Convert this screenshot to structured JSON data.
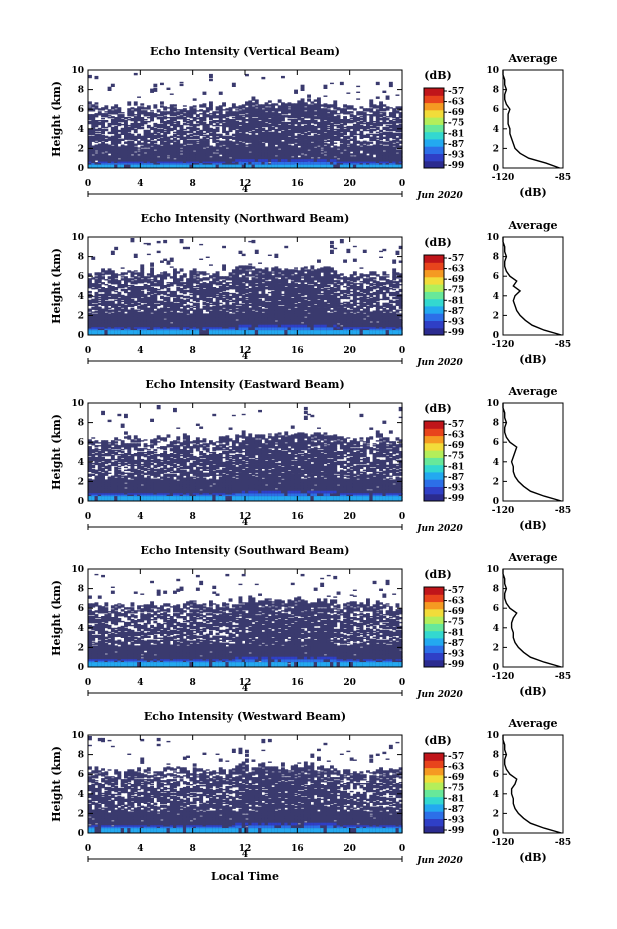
{
  "figure": {
    "x_title": "Local Time",
    "date_label": "Jun 2020",
    "colorbar_unit": "(dB)",
    "avg_title": "Average",
    "avg_xlabel": "(dB)",
    "ylabel": "Height (km)",
    "sub_tick_label": "4",
    "colors": {
      "echo": "#3a3a6e",
      "background": "#ffffff",
      "scale": [
        "#2b2b8f",
        "#2f3fc6",
        "#2c6fe8",
        "#23a9f0",
        "#33d8d0",
        "#67e89a",
        "#b4ee5a",
        "#f2dc3a",
        "#f59a22",
        "#e8441c",
        "#c0151a"
      ]
    }
  },
  "chart_data": [
    {
      "type": "heatmap",
      "title": "Echo Intensity (Vertical Beam)",
      "ylabel": "Height (km)",
      "xlabel": "Local Time",
      "x_ticks": [
        "0",
        "4",
        "8",
        "12",
        "16",
        "20",
        "0"
      ],
      "y_ticks": [
        "0",
        "2",
        "4",
        "6",
        "8",
        "10"
      ],
      "xlim": [
        0,
        24
      ],
      "ylim": [
        0,
        10
      ],
      "colorbar": {
        "label": "(dB)",
        "ticks": [
          "-57",
          "-63",
          "-69",
          "-75",
          "-81",
          "-87",
          "-93",
          "-99"
        ]
      },
      "average_profile": {
        "title": "Average",
        "xlabel": "(dB)",
        "x_ticks": [
          "-120",
          "-85"
        ],
        "xlim": [
          -120,
          -85
        ],
        "y_ticks": [
          "0",
          "2",
          "4",
          "6",
          "8",
          "10"
        ],
        "height_km": [
          0,
          0.5,
          1,
          1.5,
          2,
          2.5,
          3,
          3.5,
          4,
          4.5,
          5,
          5.5,
          6,
          6.5,
          7,
          7.5,
          8,
          8.5,
          9,
          9.5,
          10
        ],
        "db": [
          -87,
          -95,
          -105,
          -110,
          -113,
          -114,
          -115,
          -116,
          -116,
          -117,
          -117,
          -117,
          -116,
          -118,
          -119,
          -119,
          -118,
          -119,
          -119,
          -120,
          -120
        ]
      }
    },
    {
      "type": "heatmap",
      "title": "Echo Intensity (Northward Beam)",
      "ylabel": "Height (km)",
      "xlabel": "Local Time",
      "x_ticks": [
        "0",
        "4",
        "8",
        "12",
        "16",
        "20",
        "0"
      ],
      "y_ticks": [
        "0",
        "2",
        "4",
        "6",
        "8",
        "10"
      ],
      "xlim": [
        0,
        24
      ],
      "ylim": [
        0,
        10
      ],
      "colorbar": {
        "label": "(dB)",
        "ticks": [
          "-57",
          "-63",
          "-69",
          "-75",
          "-81",
          "-87",
          "-93",
          "-99"
        ]
      },
      "average_profile": {
        "title": "Average",
        "xlabel": "(dB)",
        "x_ticks": [
          "-120",
          "-85"
        ],
        "xlim": [
          -120,
          -85
        ],
        "y_ticks": [
          "0",
          "2",
          "4",
          "6",
          "8",
          "10"
        ],
        "height_km": [
          0,
          0.5,
          1,
          1.5,
          2,
          2.5,
          3,
          3.5,
          4,
          4.5,
          5,
          5.5,
          6,
          6.5,
          7,
          7.5,
          8,
          8.5,
          9,
          9.5,
          10
        ],
        "db": [
          -86,
          -96,
          -103,
          -107,
          -110,
          -112,
          -113,
          -114,
          -113,
          -110,
          -114,
          -112,
          -116,
          -118,
          -119,
          -119,
          -118,
          -119,
          -119,
          -120,
          -120
        ]
      }
    },
    {
      "type": "heatmap",
      "title": "Echo Intensity (Eastward Beam)",
      "ylabel": "Height (km)",
      "xlabel": "Local Time",
      "x_ticks": [
        "0",
        "4",
        "8",
        "12",
        "16",
        "20",
        "0"
      ],
      "y_ticks": [
        "0",
        "2",
        "4",
        "6",
        "8",
        "10"
      ],
      "xlim": [
        0,
        24
      ],
      "ylim": [
        0,
        10
      ],
      "colorbar": {
        "label": "(dB)",
        "ticks": [
          "-57",
          "-63",
          "-69",
          "-75",
          "-81",
          "-87",
          "-93",
          "-99"
        ]
      },
      "average_profile": {
        "title": "Average",
        "xlabel": "(dB)",
        "x_ticks": [
          "-120",
          "-85"
        ],
        "xlim": [
          -120,
          -85
        ],
        "y_ticks": [
          "0",
          "2",
          "4",
          "6",
          "8",
          "10"
        ],
        "height_km": [
          0,
          0.5,
          1,
          1.5,
          2,
          2.5,
          3,
          3.5,
          4,
          4.5,
          5,
          5.5,
          6,
          6.5,
          7,
          7.5,
          8,
          8.5,
          9,
          9.5,
          10
        ],
        "db": [
          -86,
          -96,
          -104,
          -108,
          -111,
          -113,
          -114,
          -114,
          -115,
          -114,
          -113,
          -112,
          -116,
          -118,
          -119,
          -119,
          -118,
          -119,
          -119,
          -120,
          -120
        ]
      }
    },
    {
      "type": "heatmap",
      "title": "Echo Intensity (Southward Beam)",
      "ylabel": "Height (km)",
      "xlabel": "Local Time",
      "x_ticks": [
        "0",
        "4",
        "8",
        "12",
        "16",
        "20",
        "0"
      ],
      "y_ticks": [
        "0",
        "2",
        "4",
        "6",
        "8",
        "10"
      ],
      "xlim": [
        0,
        24
      ],
      "ylim": [
        0,
        10
      ],
      "colorbar": {
        "label": "(dB)",
        "ticks": [
          "-57",
          "-63",
          "-69",
          "-75",
          "-81",
          "-87",
          "-93",
          "-99"
        ]
      },
      "average_profile": {
        "title": "Average",
        "xlabel": "(dB)",
        "x_ticks": [
          "-120",
          "-85"
        ],
        "xlim": [
          -120,
          -85
        ],
        "y_ticks": [
          "0",
          "2",
          "4",
          "6",
          "8",
          "10"
        ],
        "height_km": [
          0,
          0.5,
          1,
          1.5,
          2,
          2.5,
          3,
          3.5,
          4,
          4.5,
          5,
          5.5,
          6,
          6.5,
          7,
          7.5,
          8,
          8.5,
          9,
          9.5,
          10
        ],
        "db": [
          -86,
          -96,
          -104,
          -108,
          -111,
          -113,
          -114,
          -114,
          -115,
          -115,
          -114,
          -112,
          -116,
          -118,
          -119,
          -119,
          -118,
          -119,
          -119,
          -120,
          -120
        ]
      }
    },
    {
      "type": "heatmap",
      "title": "Echo Intensity (Westward Beam)",
      "ylabel": "Height (km)",
      "xlabel": "Local Time",
      "x_ticks": [
        "0",
        "4",
        "8",
        "12",
        "16",
        "20",
        "0"
      ],
      "y_ticks": [
        "0",
        "2",
        "4",
        "6",
        "8",
        "10"
      ],
      "xlim": [
        0,
        24
      ],
      "ylim": [
        0,
        10
      ],
      "colorbar": {
        "label": "(dB)",
        "ticks": [
          "-57",
          "-63",
          "-69",
          "-75",
          "-81",
          "-87",
          "-93",
          "-99"
        ]
      },
      "average_profile": {
        "title": "Average",
        "xlabel": "(dB)",
        "x_ticks": [
          "-120",
          "-85"
        ],
        "xlim": [
          -120,
          -85
        ],
        "y_ticks": [
          "0",
          "2",
          "4",
          "6",
          "8",
          "10"
        ],
        "height_km": [
          0,
          0.5,
          1,
          1.5,
          2,
          2.5,
          3,
          3.5,
          4,
          4.5,
          5,
          5.5,
          6,
          6.5,
          7,
          7.5,
          8,
          8.5,
          9,
          9.5,
          10
        ],
        "db": [
          -86,
          -96,
          -104,
          -108,
          -111,
          -113,
          -114,
          -114,
          -115,
          -115,
          -113,
          -112,
          -116,
          -118,
          -119,
          -119,
          -118,
          -119,
          -119,
          -120,
          -120
        ]
      }
    }
  ]
}
